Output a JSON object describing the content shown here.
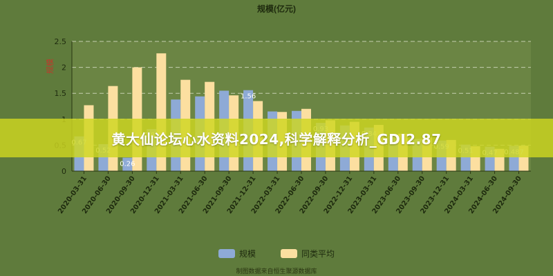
{
  "banner": {
    "text": "黄大仙论坛心水资料2024,科学解释分析_GDI2.87"
  },
  "colors": {
    "background": "#5f7b3c",
    "plot_area": "#6b8544",
    "series_scale": "#8eaad6",
    "series_avg": "#fcdfa0",
    "banner": "#ced720",
    "axis_text": "#1e2a0e",
    "ylabel_text": "#c0392b"
  },
  "chart_data": {
    "type": "bar",
    "title": "规模(亿元)",
    "ylabel": "规模",
    "xlabel": "",
    "ylim": [
      0,
      2.5
    ],
    "yticks": [
      0,
      0.5,
      1,
      1.5,
      2,
      2.5
    ],
    "categories": [
      "2020-03-31",
      "2020-06-30",
      "2020-09-30",
      "2020-12-31",
      "2021-03-31",
      "2021-06-30",
      "2021-09-30",
      "2021-12-31",
      "2022-03-31",
      "2022-06-30",
      "2022-09-30",
      "2022-12-31",
      "2023-03-31",
      "2023-06-30",
      "2023-09-30",
      "2023-12-31",
      "2024-03-31",
      "2024-06-30",
      "2024-09-30"
    ],
    "series": [
      {
        "name": "规模",
        "values": [
          0.67,
          0.52,
          0.26,
          0.81,
          1.38,
          1.44,
          1.55,
          1.56,
          1.15,
          1.16,
          0.93,
          0.88,
          0.84,
          0.68,
          0.62,
          0.59,
          0.51,
          0.47,
          0.487
        ],
        "labels": [
          "0.67",
          "0.52",
          "0.26",
          "0.81",
          "",
          "",
          "",
          "1.56",
          "",
          "",
          "0.93",
          "",
          "0.84",
          "",
          "",
          "0.59",
          "0.51",
          "0.47",
          "0.487"
        ]
      },
      {
        "name": "同类平均",
        "values": [
          1.27,
          1.64,
          2.0,
          2.27,
          1.76,
          1.72,
          1.46,
          1.35,
          1.14,
          1.2,
          0.98,
          0.95,
          0.89,
          0.72,
          0.65,
          0.6,
          0.48,
          0.43,
          0.49
        ]
      }
    ],
    "grid": true,
    "legend_position": "bottom"
  },
  "footnote": "制图数据来自恒生聚源数据库"
}
